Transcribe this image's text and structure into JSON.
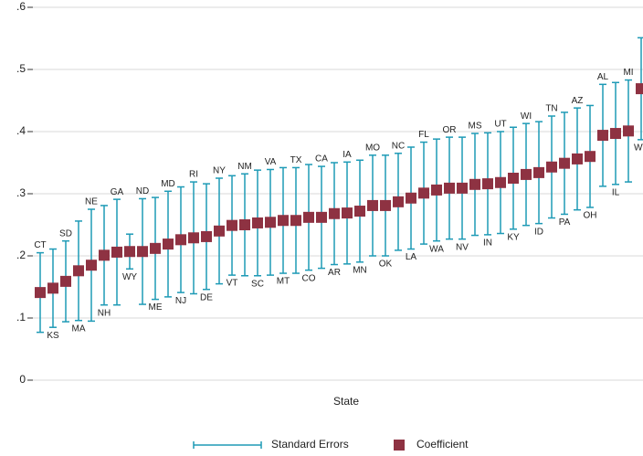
{
  "chart_data": {
    "type": "errorbar",
    "xlabel": "State",
    "categories": [
      "CT",
      "KS",
      "SD",
      "MA",
      "NE",
      "NH",
      "GA",
      "WY",
      "ND",
      "ME",
      "MD",
      "NJ",
      "RI",
      "DE",
      "NY",
      "VT",
      "NM",
      "SC",
      "VA",
      "MT",
      "TX",
      "CO",
      "CA",
      "AR",
      "IA",
      "MN",
      "MO",
      "OK",
      "NC",
      "LA",
      "FL",
      "WA",
      "OR",
      "NV",
      "MS",
      "IN",
      "UT",
      "KY",
      "WI",
      "ID",
      "TN",
      "PA",
      "AZ",
      "OH",
      "AL",
      "IL",
      "MI",
      "WV"
    ],
    "series": [
      {
        "name": "Coefficient",
        "color": "#8e3242",
        "values": [
          0.141,
          0.148,
          0.159,
          0.176,
          0.185,
          0.201,
          0.206,
          0.207,
          0.207,
          0.212,
          0.219,
          0.226,
          0.229,
          0.231,
          0.24,
          0.249,
          0.25,
          0.253,
          0.254,
          0.257,
          0.257,
          0.262,
          0.262,
          0.268,
          0.269,
          0.272,
          0.281,
          0.281,
          0.287,
          0.293,
          0.301,
          0.306,
          0.309,
          0.309,
          0.315,
          0.316,
          0.318,
          0.325,
          0.331,
          0.334,
          0.343,
          0.349,
          0.356,
          0.36,
          0.394,
          0.397,
          0.401,
          0.469
        ]
      },
      {
        "name": "Standard Errors",
        "color": "#1e9ab6",
        "values": [
          0.064,
          0.063,
          0.065,
          0.08,
          0.09,
          0.08,
          0.085,
          0.028,
          0.085,
          0.082,
          0.085,
          0.085,
          0.09,
          0.085,
          0.085,
          0.08,
          0.082,
          0.085,
          0.085,
          0.085,
          0.085,
          0.085,
          0.082,
          0.082,
          0.082,
          0.082,
          0.081,
          0.081,
          0.078,
          0.082,
          0.082,
          0.082,
          0.082,
          0.082,
          0.082,
          0.082,
          0.082,
          0.082,
          0.082,
          0.082,
          0.082,
          0.082,
          0.082,
          0.082,
          0.082,
          0.082,
          0.082,
          0.082
        ]
      }
    ],
    "ylim": [
      0,
      0.6
    ],
    "yticks": [
      0,
      {
        "value": 0.1,
        "label": ".1"
      },
      {
        "value": 0.2,
        "label": ".2"
      },
      {
        "value": 0.3,
        "label": ".3"
      },
      {
        "value": 0.4,
        "label": ".4"
      },
      {
        "value": 0.5,
        "label": ".5"
      },
      {
        "value": 0.6,
        "label": ".6"
      }
    ],
    "grid": true
  }
}
